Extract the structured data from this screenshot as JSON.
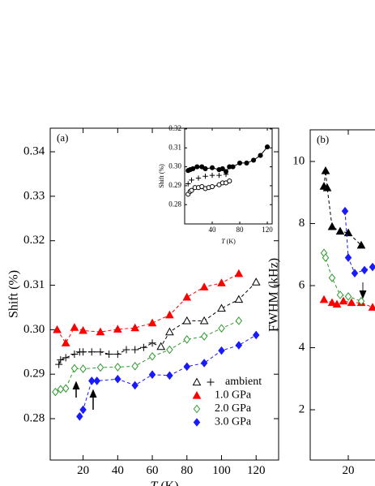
{
  "chart_data": [
    {
      "type": "scatter",
      "panel_label": "(a)",
      "x_label_symbol": "T",
      "x_label_unit": "(K)",
      "y_label": "Shift (%)",
      "xlim": [
        1,
        133
      ],
      "ylim": [
        0.2707,
        0.3453
      ],
      "xticks": [
        20,
        40,
        60,
        80,
        100,
        120
      ],
      "yticks": [
        0.28,
        0.29,
        {
          "value": 0.3,
          "label": "0.30"
        },
        0.31,
        0.32,
        0.33,
        0.34
      ],
      "line_style": "dashed",
      "legend": "lower right",
      "series": [
        {
          "name": "ambient",
          "color": "#000000",
          "markers": [
            "plus",
            "plus",
            "plus",
            "plus",
            "plus",
            "plus",
            "plus",
            "plus",
            "plus",
            "plus",
            "plus",
            "plus",
            "plus",
            "plus",
            "open-triangle",
            "open-triangle",
            "open-triangle",
            "open-triangle",
            "open-triangle",
            "open-triangle",
            "open-triangle"
          ],
          "x": [
            6,
            7,
            10,
            15,
            18,
            20,
            25,
            30,
            35,
            40,
            45,
            50,
            55,
            60,
            65,
            70,
            80,
            90,
            100,
            110,
            120
          ],
          "values": [
            0.2922,
            0.2932,
            0.2937,
            0.2945,
            0.295,
            0.295,
            0.295,
            0.295,
            0.2945,
            0.2945,
            0.2955,
            0.2955,
            0.296,
            0.297,
            0.2962,
            0.2995,
            0.302,
            0.302,
            0.3048,
            0.3068,
            0.3107
          ]
        },
        {
          "name": "1.0 GPa",
          "color": "#ff0000",
          "marker": "triangle",
          "x": [
            5,
            10,
            15,
            20,
            30,
            40,
            50,
            60,
            70,
            80,
            90,
            100,
            110
          ],
          "values": [
            0.3,
            0.297,
            0.3005,
            0.2998,
            0.2995,
            0.3001,
            0.3004,
            0.3015,
            0.3033,
            0.3073,
            0.3096,
            0.3105,
            0.3126
          ]
        },
        {
          "name": "2.0 GPa",
          "color": "#2e9a2e",
          "marker": "open-diamond",
          "x": [
            4,
            7,
            10,
            15,
            20,
            30,
            40,
            50,
            60,
            70,
            80,
            90,
            100,
            110
          ],
          "values": [
            0.286,
            0.2866,
            0.2868,
            0.2913,
            0.2912,
            0.2915,
            0.2916,
            0.2918,
            0.294,
            0.2955,
            0.2978,
            0.2985,
            0.3003,
            0.302
          ]
        },
        {
          "name": "3.0 GPa",
          "color": "#1a1aff",
          "marker": "diamond",
          "x": [
            18,
            20,
            25,
            28,
            40,
            50,
            60,
            70,
            80,
            90,
            100,
            110,
            120
          ],
          "values": [
            0.2805,
            0.282,
            0.2885,
            0.2885,
            0.2889,
            0.2875,
            0.2899,
            0.2897,
            0.2917,
            0.2925,
            0.2953,
            0.2965,
            0.2988
          ]
        }
      ]
    },
    {
      "type": "scatter",
      "inset": true,
      "x_label_symbol": "T",
      "x_label_unit": "(K)",
      "y_label": "Shift (%)",
      "xlim": [
        0,
        127
      ],
      "ylim": [
        0.2698,
        0.3204
      ],
      "xticks": [
        40,
        80,
        120
      ],
      "yticks": [
        0.28,
        0.29,
        {
          "value": 0.3,
          "label": "0.30"
        },
        0.31,
        0.32
      ],
      "line_style": "solid",
      "series": [
        {
          "color": "#000000",
          "marker": "circle",
          "x": [
            5,
            8,
            12,
            18,
            25,
            30,
            40,
            50,
            55,
            60,
            65,
            70,
            80,
            90,
            100,
            110,
            120
          ],
          "values": [
            0.298,
            0.2985,
            0.299,
            0.3,
            0.3,
            0.299,
            0.2995,
            0.2985,
            0.299,
            0.2975,
            0.3,
            0.3,
            0.302,
            0.302,
            0.3035,
            0.306,
            0.3105
          ]
        },
        {
          "color": "#000000",
          "marker": "open-circle",
          "x": [
            5,
            8,
            10,
            15,
            20,
            25,
            30,
            35,
            40,
            50,
            55,
            60,
            65
          ],
          "values": [
            0.2855,
            0.287,
            0.2875,
            0.289,
            0.289,
            0.2895,
            0.2885,
            0.289,
            0.2895,
            0.2905,
            0.2915,
            0.2915,
            0.2925
          ]
        },
        {
          "color": "#000000",
          "marker": "plus",
          "no_line": true,
          "x": [
            5,
            10,
            20,
            30,
            40,
            50,
            60
          ],
          "values": [
            0.291,
            0.293,
            0.294,
            0.295,
            0.2955,
            0.2955,
            0.296
          ]
        }
      ]
    },
    {
      "type": "scatter",
      "panel_label": "(b)",
      "y_label": "FWHM (kHz)",
      "xlim": [
        -3.5,
        40
      ],
      "ylim": [
        0.38,
        11.02
      ],
      "xticks": [
        20
      ],
      "yticks": [
        2,
        4,
        6,
        8,
        10
      ],
      "line_style": "dashed",
      "series": [
        {
          "color": "#000000",
          "marker": "triangle",
          "x": [
            5,
            6,
            7,
            10,
            15,
            20,
            28
          ],
          "values": [
            9.2,
            9.7,
            9.15,
            7.9,
            7.75,
            7.7,
            7.3
          ]
        },
        {
          "color": "#ff0000",
          "marker": "triangle",
          "x": [
            5,
            10,
            13,
            17,
            22,
            28,
            35
          ],
          "values": [
            5.55,
            5.45,
            5.4,
            5.5,
            5.45,
            5.45,
            5.3
          ]
        },
        {
          "color": "#2e9a2e",
          "marker": "open-diamond",
          "x": [
            5,
            6,
            10,
            15,
            20,
            28
          ],
          "values": [
            7.05,
            6.9,
            6.25,
            5.7,
            5.65,
            5.5
          ]
        },
        {
          "color": "#1a1aff",
          "marker": "diamond",
          "x": [
            18,
            20,
            24,
            30,
            35
          ],
          "values": [
            8.4,
            6.9,
            6.4,
            6.5,
            6.6
          ]
        }
      ]
    }
  ]
}
